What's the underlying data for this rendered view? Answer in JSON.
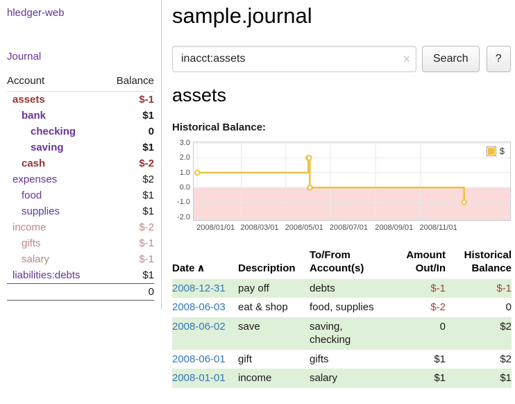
{
  "app": {
    "brand": "hledger-web",
    "nav": {
      "journal": "Journal"
    }
  },
  "colors": {
    "accent_purple": "#663399",
    "negative_strong": "#943634",
    "negative_soft": "#bb8887",
    "link_blue": "#3377bb",
    "row_green": "#dff0d8",
    "chart_gold": "#edc240",
    "chart_negative_band": "#fbdada"
  },
  "sidebar": {
    "header": {
      "account": "Account",
      "balance": "Balance"
    },
    "accounts": [
      {
        "name": "assets",
        "balance": "$-1",
        "indent": 0,
        "bold": true,
        "negative": "strong"
      },
      {
        "name": "bank",
        "balance": "$1",
        "indent": 1,
        "bold": true,
        "negative": null
      },
      {
        "name": "checking",
        "balance": "0",
        "indent": 2,
        "bold": true,
        "negative": null
      },
      {
        "name": "saving",
        "balance": "$1",
        "indent": 2,
        "bold": true,
        "negative": null
      },
      {
        "name": "cash",
        "balance": "$-2",
        "indent": 1,
        "bold": true,
        "negative": "strong"
      },
      {
        "name": "expenses",
        "balance": "$2",
        "indent": 0,
        "bold": false,
        "negative": null
      },
      {
        "name": "food",
        "balance": "$1",
        "indent": 1,
        "bold": false,
        "negative": null
      },
      {
        "name": "supplies",
        "balance": "$1",
        "indent": 1,
        "bold": false,
        "negative": null
      },
      {
        "name": "income",
        "balance": "$-2",
        "indent": 0,
        "bold": false,
        "negative": "soft"
      },
      {
        "name": "gifts",
        "balance": "$-1",
        "indent": 1,
        "bold": false,
        "negative": "soft"
      },
      {
        "name": "salary",
        "balance": "$-1",
        "indent": 1,
        "bold": false,
        "negative": "soft"
      },
      {
        "name": "liabilities:debts",
        "balance": "$1",
        "indent": 0,
        "bold": false,
        "negative": null
      }
    ],
    "total": "0"
  },
  "main": {
    "title": "sample.journal",
    "search": {
      "value": "inacct:assets",
      "clear_icon": "×",
      "button": "Search",
      "help_button": "?"
    },
    "account_heading": "assets",
    "chart_label": "Historical Balance:"
  },
  "chart_data": {
    "type": "line",
    "step": true,
    "title": "Historical Balance:",
    "series": [
      {
        "name": "$",
        "points": [
          [
            "2008-01-01",
            1
          ],
          [
            "2008-06-01",
            2
          ],
          [
            "2008-06-02",
            2
          ],
          [
            "2008-06-03",
            0
          ],
          [
            "2008-12-31",
            -1
          ]
        ]
      }
    ],
    "x_domain": [
      "2007-12-27",
      "2009-03-04"
    ],
    "x_ticks": [
      {
        "label": "2008/01/01",
        "date": "2008-01-01"
      },
      {
        "label": "2008/03/01",
        "date": "2008-03-01"
      },
      {
        "label": "2008/05/01",
        "date": "2008-05-01"
      },
      {
        "label": "2008/07/01",
        "date": "2008-07-01"
      },
      {
        "label": "2008/09/01",
        "date": "2008-09-01"
      },
      {
        "label": "2008/11/01",
        "date": "2008-11-01"
      }
    ],
    "y_ticks": [
      "3.0",
      "2.0",
      "1.0",
      "0.0",
      "-1.0",
      "-2.0"
    ],
    "ylim": [
      -2.2,
      3.05
    ],
    "grid": true,
    "legend": [
      {
        "label": "$",
        "color": "#edc240"
      }
    ],
    "legend_position": "top-right",
    "line_color": "#edc240",
    "negative_band": {
      "from": 0,
      "to": -2.2,
      "color": "#fbdada"
    }
  },
  "register": {
    "headers": {
      "date": "Date",
      "sort_icon": "∧",
      "description": "Description",
      "accounts": "To/From Account(s)",
      "amount": "Amount Out/In",
      "balance": "Historical Balance"
    },
    "rows": [
      {
        "date": "2008-12-31",
        "description": "pay off",
        "accounts": "debts",
        "amount": "$-1",
        "amount_negative": true,
        "balance": "$-1",
        "balance_negative": true
      },
      {
        "date": "2008-06-03",
        "description": "eat & shop",
        "accounts": "food, supplies",
        "amount": "$-2",
        "amount_negative": true,
        "balance": "0",
        "balance_negative": false
      },
      {
        "date": "2008-06-02",
        "description": "save",
        "accounts": "saving, checking",
        "amount": "0",
        "amount_negative": false,
        "balance": "$2",
        "balance_negative": false
      },
      {
        "date": "2008-06-01",
        "description": "gift",
        "accounts": "gifts",
        "amount": "$1",
        "amount_negative": false,
        "balance": "$2",
        "balance_negative": false
      },
      {
        "date": "2008-01-01",
        "description": "income",
        "accounts": "salary",
        "amount": "$1",
        "amount_negative": false,
        "balance": "$1",
        "balance_negative": false
      }
    ]
  }
}
